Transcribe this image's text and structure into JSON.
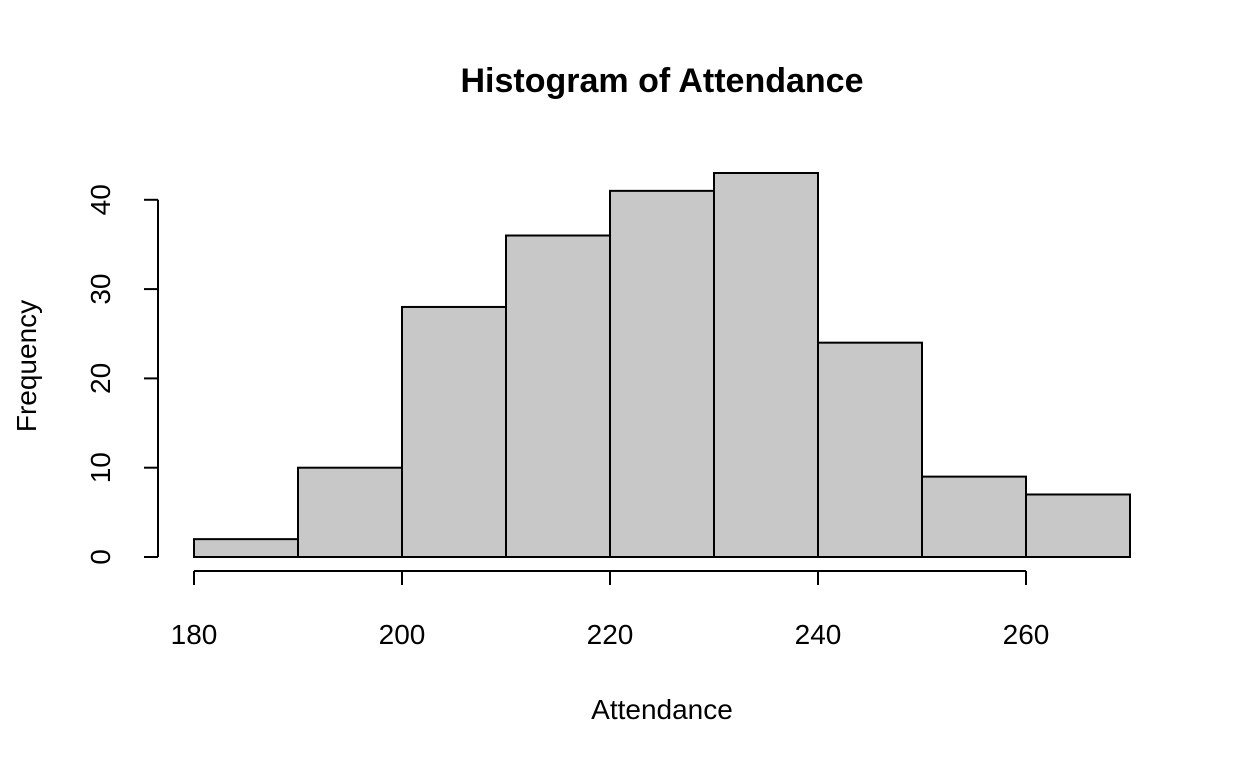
{
  "chart_data": {
    "type": "bar",
    "title": "Histogram of Attendance",
    "xlabel": "Attendance",
    "ylabel": "Frequency",
    "bins": [
      {
        "start": 180,
        "end": 190,
        "count": 2
      },
      {
        "start": 190,
        "end": 200,
        "count": 10
      },
      {
        "start": 200,
        "end": 210,
        "count": 28
      },
      {
        "start": 210,
        "end": 220,
        "count": 36
      },
      {
        "start": 220,
        "end": 230,
        "count": 41
      },
      {
        "start": 230,
        "end": 240,
        "count": 43
      },
      {
        "start": 240,
        "end": 250,
        "count": 24
      },
      {
        "start": 250,
        "end": 260,
        "count": 9
      },
      {
        "start": 260,
        "end": 270,
        "count": 7
      }
    ],
    "xticks": [
      180,
      200,
      220,
      240,
      260
    ],
    "yticks": [
      0,
      10,
      20,
      30,
      40
    ],
    "xlim": [
      180,
      270
    ],
    "ylim": [
      0,
      43
    ],
    "grid": false,
    "bar_fill": "#c8c8c8",
    "bar_stroke": "#000000"
  }
}
